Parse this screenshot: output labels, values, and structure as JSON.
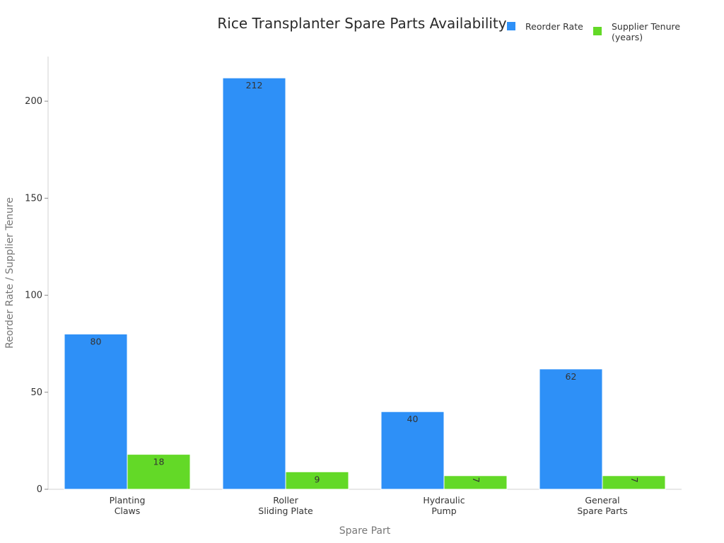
{
  "chart_data": {
    "type": "bar",
    "title": "Rice Transplanter Spare Parts Availability",
    "xlabel": "Spare Part",
    "ylabel": "Reorder Rate / Supplier Tenure",
    "categories": [
      [
        "Planting",
        "Claws"
      ],
      [
        "Roller",
        "Sliding Plate"
      ],
      [
        "Hydraulic",
        "Pump"
      ],
      [
        "General",
        "Spare Parts"
      ]
    ],
    "series": [
      {
        "name": "Reorder Rate",
        "color": "#2e90f7",
        "values": [
          80,
          212,
          40,
          62
        ],
        "labels": [
          "80",
          "212",
          "40",
          "62"
        ]
      },
      {
        "name_lines": [
          "Supplier Tenure",
          "(years)"
        ],
        "color": "#63d927",
        "values": [
          18,
          9,
          7,
          7
        ],
        "labels": [
          "18",
          "9",
          "7",
          "7"
        ]
      }
    ],
    "ylim": [
      0,
      223
    ],
    "yticks": [
      0,
      50,
      100,
      150,
      200
    ],
    "ytick_labels": [
      "0",
      "50",
      "100",
      "150",
      "200"
    ],
    "grid": false,
    "legend": "top-right"
  }
}
